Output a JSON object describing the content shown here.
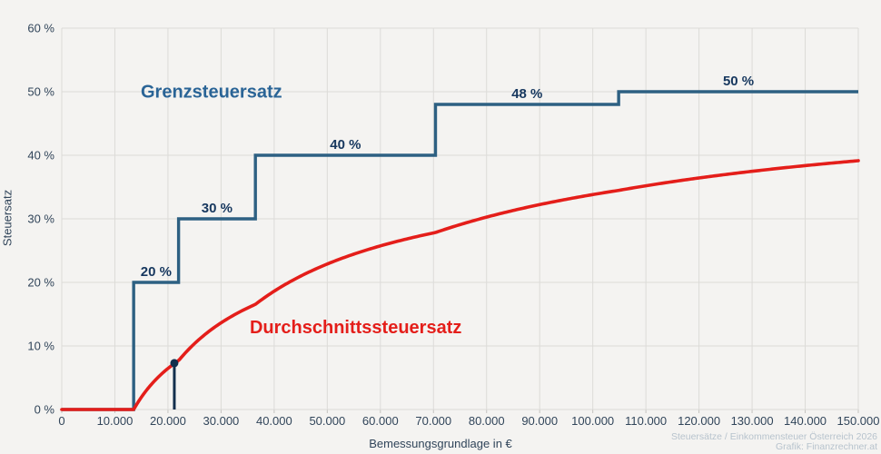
{
  "colors": {
    "background": "#f4f3f1",
    "grid": "#dcdbd8",
    "tick_text": "#31455a",
    "marginal_line": "#2d6082",
    "marginal_name_label": "#2a6496",
    "bracket_label": "#16375e",
    "average_line": "#e41e1a",
    "marker": "#122f4d",
    "watermark": "#b7c3cd"
  },
  "watermark": {
    "line1": "Steuersätze / Einkommensteuer Österreich 2026",
    "line2": "Grafik: Finanzrechner.at"
  },
  "chart_data": {
    "type": "line",
    "title": "",
    "xlabel": "Bemessungsgrundlage in €",
    "ylabel": "Steuersatz",
    "xlim": [
      0,
      150000
    ],
    "ylim": [
      0,
      60
    ],
    "grid": true,
    "legend_position": "inline-labels",
    "x_tick_values": [
      0,
      10000,
      20000,
      30000,
      40000,
      50000,
      60000,
      70000,
      80000,
      90000,
      100000,
      110000,
      120000,
      130000,
      140000,
      150000
    ],
    "x_tick_labels": [
      "0",
      "10.000",
      "20.000",
      "30.000",
      "40.000",
      "50.000",
      "60.000",
      "70.000",
      "80.000",
      "90.000",
      "100.000",
      "110.000",
      "120.000",
      "130.000",
      "140.000",
      "150.000"
    ],
    "y_tick_values": [
      0,
      10,
      20,
      30,
      40,
      50,
      60
    ],
    "y_tick_labels": [
      "0 %",
      "10 %",
      "20 %",
      "30 %",
      "40 %",
      "50 %",
      "60 %"
    ],
    "series": [
      {
        "name": "Grenzsteuersatz",
        "style": "step",
        "name_label_anchor": {
          "x": 14880,
          "y_pct": 49.1
        },
        "brackets": [
          {
            "from": 0,
            "to": 13540,
            "rate": 0,
            "label": ""
          },
          {
            "from": 13540,
            "to": 21998,
            "rate": 20,
            "label": "20 %"
          },
          {
            "from": 21998,
            "to": 36465,
            "rate": 30,
            "label": "30 %"
          },
          {
            "from": 36465,
            "to": 70380,
            "rate": 40,
            "label": "40 %"
          },
          {
            "from": 70380,
            "to": 104870,
            "rate": 48,
            "label": "48 %"
          },
          {
            "from": 104870,
            "to": 150000,
            "rate": 50,
            "label": "50 %"
          }
        ]
      },
      {
        "name": "Durchschnittssteuersatz",
        "style": "curve-derived-average-of-brackets",
        "name_label_anchor": {
          "x": 35400,
          "y_pct": 12.0
        },
        "endpoint_value_pct": 39.1
      }
    ],
    "marker_point": {
      "x": 21200,
      "y_pct": 7.3
    }
  }
}
